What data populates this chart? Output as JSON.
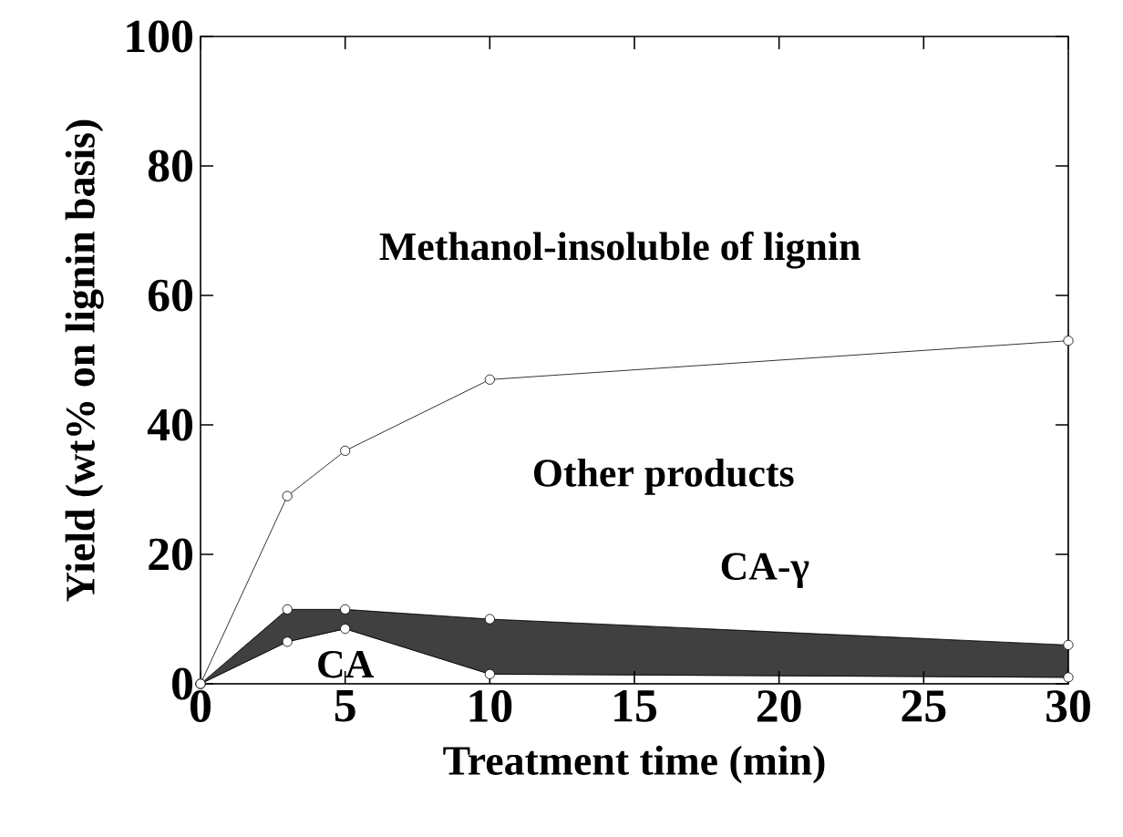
{
  "chart_data": {
    "type": "area",
    "stacked": true,
    "xlabel": "Treatment time (min)",
    "ylabel": "Yield (wt% on lignin basis)",
    "x": [
      0,
      3,
      5,
      10,
      30
    ],
    "series": [
      {
        "name": "CA",
        "color": "#ffffff",
        "values": [
          0,
          6.5,
          8.5,
          1.5,
          1
        ]
      },
      {
        "name": "CA-γ",
        "color": "#404040",
        "values": [
          0,
          5,
          3,
          8.5,
          5
        ]
      },
      {
        "name": "Other products",
        "color": "#ffffff",
        "values": [
          0,
          17.5,
          24.5,
          37,
          47
        ]
      }
    ],
    "annotations": [
      "Methanol-insoluble of lignin"
    ],
    "xlim": [
      0,
      30
    ],
    "ylim": [
      0,
      100
    ],
    "xticks": [
      0,
      5,
      10,
      15,
      20,
      25,
      30
    ],
    "yticks": [
      0,
      20,
      40,
      60,
      80,
      100
    ],
    "marker": "circle",
    "grid": false
  }
}
